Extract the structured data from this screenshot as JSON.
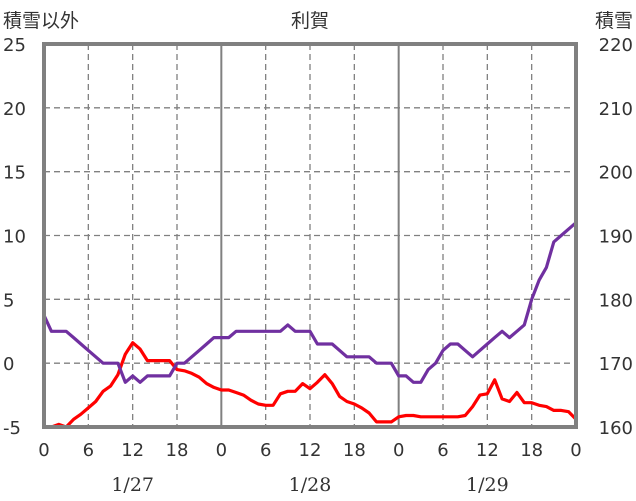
{
  "chart_data": {
    "type": "line",
    "title": "利賀",
    "left_axis_label": "積雪以外",
    "right_axis_label": "積雪",
    "left_ylim": [
      -5,
      25
    ],
    "left_yticks": [
      25,
      20,
      15,
      10,
      5,
      0,
      -5
    ],
    "right_ylim": [
      160,
      220
    ],
    "right_yticks": [
      220,
      210,
      200,
      190,
      180,
      170,
      160
    ],
    "x_range_hours": [
      0,
      72
    ],
    "x_tick_labels": [
      "0",
      "6",
      "12",
      "18",
      "0",
      "6",
      "12",
      "18",
      "0",
      "6",
      "12",
      "18",
      "0"
    ],
    "date_labels": [
      "1/27",
      "1/28",
      "1/29"
    ],
    "grid": true,
    "colors": {
      "red_series": "#ff0000",
      "purple_series": "#7030a0",
      "frame": "#808080",
      "grid": "#808080"
    },
    "series": [
      {
        "axis": "left",
        "color": "#ff0000",
        "x": [
          0,
          1,
          2,
          3,
          4,
          5,
          6,
          7,
          8,
          9,
          10,
          11,
          12,
          13,
          14,
          15,
          16,
          17,
          18,
          19,
          20,
          21,
          22,
          23,
          24,
          25,
          26,
          27,
          28,
          29,
          30,
          31,
          32,
          33,
          34,
          35,
          36,
          37,
          38,
          39,
          40,
          41,
          42,
          43,
          44,
          45,
          46,
          47,
          48,
          49,
          50,
          51,
          52,
          53,
          54,
          55,
          56,
          57,
          58,
          59,
          60,
          61,
          62,
          63,
          64,
          65,
          66,
          67,
          68,
          69,
          70,
          71,
          72
        ],
        "values": [
          -5,
          -5,
          -4.8,
          -5,
          -4.4,
          -4,
          -3.5,
          -3,
          -2.2,
          -1.8,
          -0.9,
          0.7,
          1.6,
          1.1,
          0.2,
          0.2,
          0.2,
          0.2,
          -0.5,
          -0.6,
          -0.8,
          -1.1,
          -1.6,
          -1.9,
          -2.1,
          -2.1,
          -2.3,
          -2.5,
          -2.9,
          -3.2,
          -3.3,
          -3.3,
          -2.4,
          -2.2,
          -2.2,
          -1.6,
          -2,
          -1.5,
          -0.9,
          -1.6,
          -2.6,
          -3,
          -3.2,
          -3.5,
          -3.9,
          -4.6,
          -4.6,
          -4.6,
          -4.2,
          -4.1,
          -4.1,
          -4.2,
          -4.2,
          -4.2,
          -4.2,
          -4.2,
          -4.2,
          -4.1,
          -3.4,
          -2.5,
          -2.4,
          -1.3,
          -2.8,
          -3,
          -2.3,
          -3.1,
          -3.1,
          -3.3,
          -3.4,
          -3.7,
          -3.7,
          -3.8,
          -4.4
        ]
      },
      {
        "axis": "right",
        "color": "#7030a0",
        "x": [
          0,
          1,
          2,
          3,
          4,
          5,
          6,
          7,
          8,
          9,
          10,
          11,
          12,
          13,
          14,
          15,
          16,
          17,
          18,
          19,
          20,
          21,
          22,
          23,
          24,
          25,
          26,
          27,
          28,
          29,
          30,
          31,
          32,
          33,
          34,
          35,
          36,
          37,
          38,
          39,
          40,
          41,
          42,
          43,
          44,
          45,
          46,
          47,
          48,
          49,
          50,
          51,
          52,
          53,
          54,
          55,
          56,
          57,
          58,
          59,
          60,
          61,
          62,
          63,
          64,
          65,
          66,
          67,
          68,
          69,
          70,
          71,
          72
        ],
        "values": [
          177.5,
          175,
          175,
          175,
          174,
          173,
          172,
          171,
          170,
          170,
          170,
          167,
          168,
          167,
          168,
          168,
          168,
          168,
          170,
          170,
          171,
          172,
          173,
          174,
          174,
          174,
          175,
          175,
          175,
          175,
          175,
          175,
          175,
          176,
          175,
          175,
          175,
          173,
          173,
          173,
          172,
          171,
          171,
          171,
          171,
          170,
          170,
          170,
          168,
          168,
          167,
          167,
          169,
          170,
          172,
          173,
          173,
          172,
          171,
          172,
          173,
          174,
          175,
          174,
          175,
          176,
          180,
          183,
          185,
          189,
          190,
          191,
          192
        ]
      }
    ]
  }
}
